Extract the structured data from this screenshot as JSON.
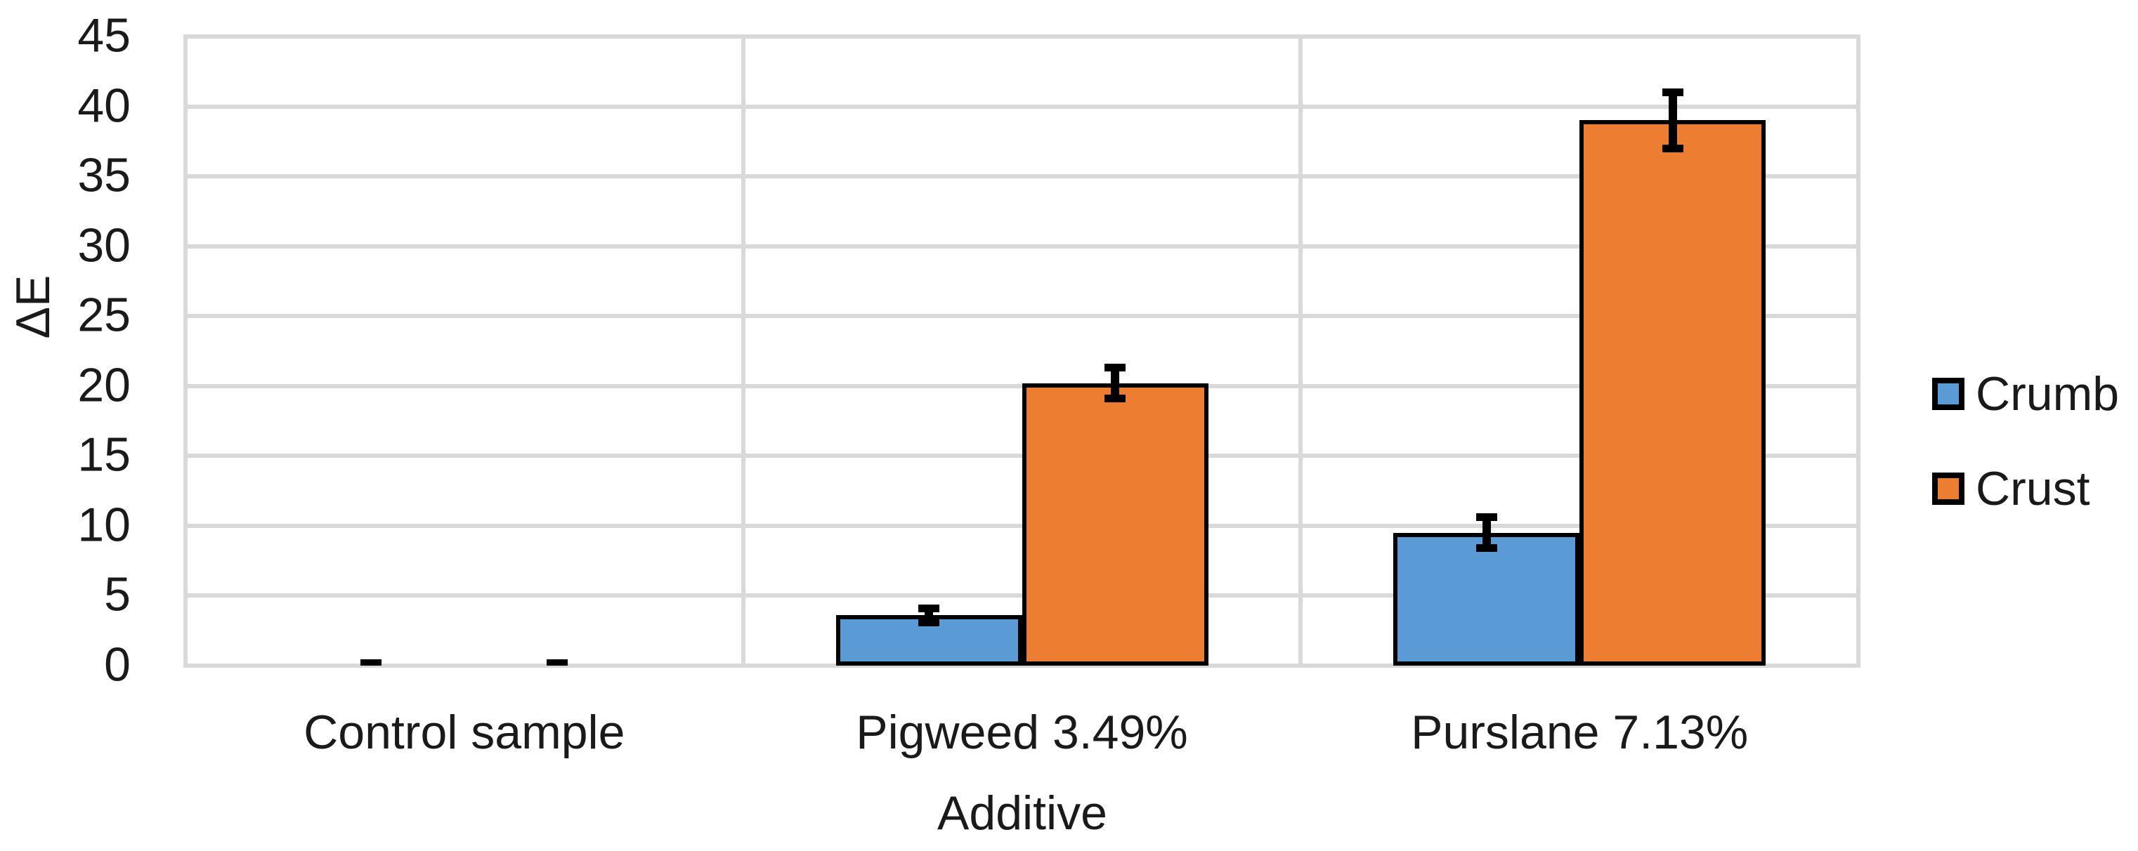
{
  "figure": {
    "background": "#FFFFFF",
    "text_color": "#1A1A1A"
  },
  "chart_data": {
    "type": "bar",
    "title": "",
    "categories": [
      "Control sample",
      "Pigweed 3.49%",
      "Purslane 7.13%"
    ],
    "series": [
      {
        "name": "Crumb",
        "color": "#5B9BD5",
        "values": [
          0,
          3.6,
          9.5
        ],
        "error_bars": [
          0.2,
          0.5,
          1.1
        ]
      },
      {
        "name": "Crust",
        "color": "#ED7D31",
        "values": [
          0,
          20.2,
          39.0
        ],
        "error_bars": [
          0.2,
          1.1,
          2.0
        ]
      }
    ],
    "xlabel": "Additive",
    "ylabel": "ΔE",
    "ylim": [
      0,
      45
    ],
    "ytick_step": 5,
    "yticks": [
      "0",
      "5",
      "10",
      "15",
      "20",
      "25",
      "30",
      "35",
      "40",
      "45"
    ],
    "grid": true,
    "gridline_color": "#D9D9D9",
    "bar_outline_color": "#000000",
    "error_bar_color": "#000000",
    "legend": {
      "position": "right",
      "entries": [
        "Crumb",
        "Crust"
      ]
    }
  }
}
